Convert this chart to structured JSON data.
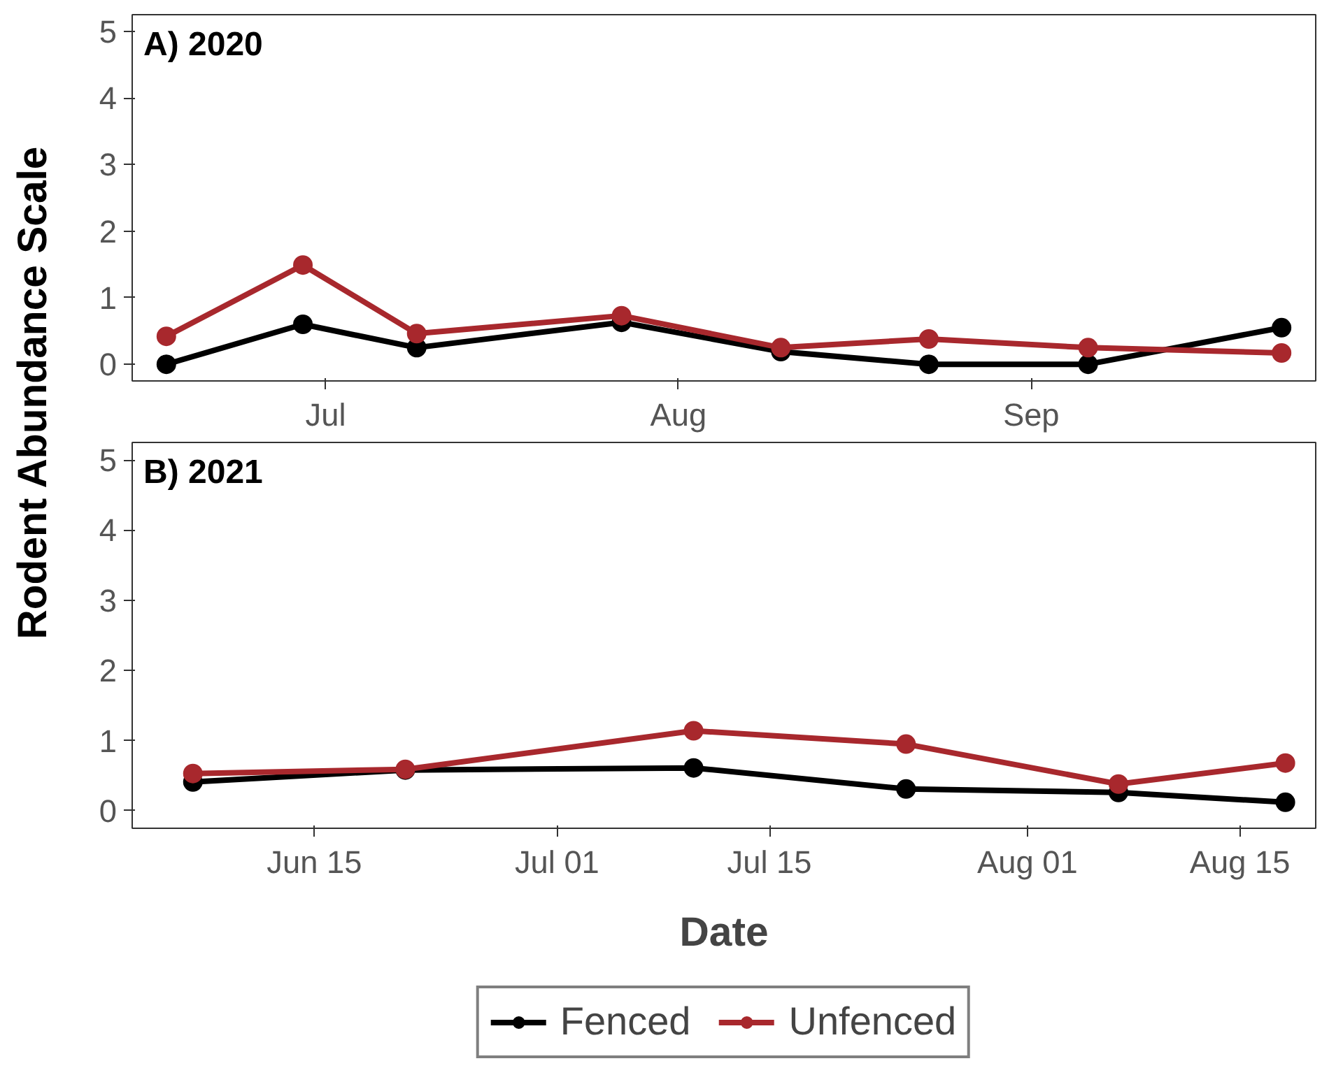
{
  "chart_data": [
    {
      "type": "line",
      "title": "A) 2020",
      "ylabel": "Rodent Abundance Scale",
      "x": [
        "2020-06-17",
        "2020-06-29",
        "2020-07-09",
        "2020-07-27",
        "2020-08-10",
        "2020-08-23",
        "2020-09-06",
        "2020-09-23"
      ],
      "series": [
        {
          "name": "Fenced",
          "color": "#000000",
          "values": [
            0,
            0.6,
            0.25,
            0.63,
            0.19,
            0,
            0,
            0.55
          ]
        },
        {
          "name": "Unfenced",
          "color": "#a8282d",
          "values": [
            0.42,
            1.49,
            0.46,
            0.73,
            0.25,
            0.38,
            0.25,
            0.17
          ]
        }
      ],
      "xlim": [
        "2020-06-14",
        "2020-09-26"
      ],
      "xticks": [
        {
          "value": "2020-07-01",
          "label": "Jul"
        },
        {
          "value": "2020-08-01",
          "label": "Aug"
        },
        {
          "value": "2020-09-01",
          "label": "Sep"
        }
      ],
      "ylim": [
        -0.25,
        5.25
      ],
      "yticks": [
        0,
        1,
        2,
        3,
        4,
        5
      ],
      "marker": "circle",
      "line_style": "solid",
      "grid": false,
      "legend": "bottom"
    },
    {
      "type": "line",
      "title": "B) 2021",
      "xlabel": "Date",
      "x": [
        "2021-06-07",
        "2021-06-21",
        "2021-07-10",
        "2021-07-24",
        "2021-08-07",
        "2021-08-18"
      ],
      "series": [
        {
          "color": "#000000",
          "values": [
            0.41,
            0.58,
            0.61,
            0.31,
            0.26,
            0.12
          ]
        },
        {
          "color": "#a8282d",
          "values": [
            0.53,
            0.59,
            1.14,
            0.95,
            0.38,
            0.68
          ]
        }
      ],
      "xlim": [
        "2021-06-03",
        "2021-08-20"
      ],
      "xticks": [
        {
          "value": "2021-06-15",
          "label": "Jun 15"
        },
        {
          "value": "2021-07-01",
          "label": "Jul 01"
        },
        {
          "value": "2021-07-15",
          "label": "Jul 15"
        },
        {
          "value": "2021-08-01",
          "label": "Aug 01"
        },
        {
          "value": "2021-08-15",
          "label": "Aug 15"
        }
      ],
      "ylim": [
        -0.25,
        5.25
      ],
      "yticks": [
        0,
        1,
        2,
        3,
        4,
        5
      ],
      "marker": "circle",
      "line_style": "solid",
      "grid": false
    }
  ]
}
